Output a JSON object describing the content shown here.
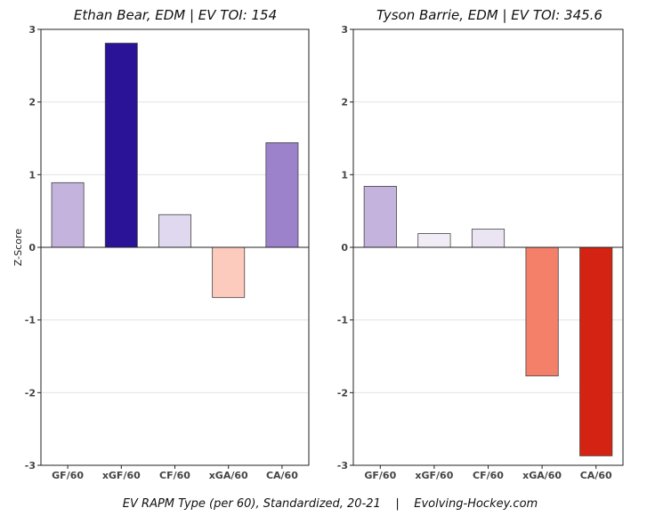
{
  "caption": "EV RAPM Type (per 60), Standardized, 20-21    |    Evolving-Hockey.com",
  "chart_data": [
    {
      "type": "bar",
      "title": "Ethan Bear, EDM  |  EV TOI: 154",
      "ylabel": "Z-Score",
      "xlabel": "",
      "categories": [
        "GF/60",
        "xGF/60",
        "CF/60",
        "xGA/60",
        "CA/60"
      ],
      "values": [
        0.89,
        2.81,
        0.45,
        -0.69,
        1.44
      ],
      "colors": [
        "#c3b3dd",
        "#2b1397",
        "#e0d8ee",
        "#fdcbbd",
        "#9c82cb"
      ],
      "ylim": [
        -3,
        3
      ],
      "yticks": [
        "3",
        "2",
        "1",
        "0",
        "-1",
        "-2",
        "-3"
      ],
      "grid": true
    },
    {
      "type": "bar",
      "title": "Tyson Barrie, EDM  |  EV TOI: 345.6",
      "ylabel": "",
      "xlabel": "",
      "categories": [
        "GF/60",
        "xGF/60",
        "CF/60",
        "xGA/60",
        "CA/60"
      ],
      "values": [
        0.84,
        0.19,
        0.25,
        -1.77,
        -2.87
      ],
      "colors": [
        "#c3b3dd",
        "#f1edf7",
        "#eae4f3",
        "#f4806a",
        "#d42312"
      ],
      "ylim": [
        -3,
        3
      ],
      "yticks": [
        "3",
        "2",
        "1",
        "0",
        "-1",
        "-2",
        "-3"
      ],
      "grid": true
    }
  ]
}
